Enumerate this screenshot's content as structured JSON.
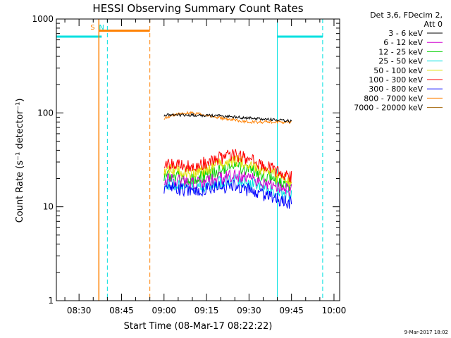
{
  "chart_data": {
    "type": "line",
    "title": "HESSI Observing Summary Count Rates",
    "xlabel": "Start Time (08-Mar-17 08:22:22)",
    "ylabel": "Count Rate (s⁻¹ detector⁻¹)",
    "y_scale": "log",
    "ylim": [
      1,
      1000
    ],
    "xlim": [
      "08:22",
      "10:02"
    ],
    "x_ticks": [
      "08:30",
      "08:45",
      "09:00",
      "09:15",
      "09:30",
      "09:45",
      "10:00"
    ],
    "y_ticks": [
      "1",
      "10",
      "100",
      "1000"
    ],
    "grid": false,
    "legend_header": [
      "Det 3,6, FDecim 2,",
      "Att 0"
    ],
    "legend_position": "right",
    "timestamp": "9-Mar-2017 18:02",
    "series": [
      {
        "name": "3 - 6 keV",
        "color": "#000000",
        "x": [
          "09:00",
          "09:10",
          "09:20",
          "09:30",
          "09:40",
          "09:45"
        ],
        "values": [
          95,
          95,
          93,
          88,
          84,
          82
        ]
      },
      {
        "name": "6 - 12 keV",
        "color": "#d000d0",
        "x": [
          "09:00",
          "09:10",
          "09:20",
          "09:25",
          "09:30",
          "09:40",
          "09:45"
        ],
        "values": [
          20,
          18,
          20,
          22,
          20,
          16,
          15
        ]
      },
      {
        "name": "12 - 25 keV",
        "color": "#00d000",
        "x": [
          "09:00",
          "09:10",
          "09:20",
          "09:25",
          "09:30",
          "09:40",
          "09:45"
        ],
        "values": [
          22,
          20,
          24,
          27,
          25,
          19,
          17
        ]
      },
      {
        "name": "25 - 50 keV",
        "color": "#00e0e0",
        "x": [
          "09:00",
          "09:10",
          "09:20",
          "09:25",
          "09:30",
          "09:40",
          "09:45"
        ],
        "values": [
          18,
          16,
          18,
          20,
          18,
          14,
          13
        ]
      },
      {
        "name": "50 - 100 keV",
        "color": "#e0e000",
        "x": [
          "09:00",
          "09:10",
          "09:20",
          "09:25",
          "09:30",
          "09:40",
          "09:45"
        ],
        "values": [
          25,
          23,
          28,
          32,
          28,
          21,
          19
        ]
      },
      {
        "name": "100 - 300 keV",
        "color": "#ff0000",
        "x": [
          "09:00",
          "09:10",
          "09:20",
          "09:25",
          "09:30",
          "09:40",
          "09:45"
        ],
        "values": [
          30,
          27,
          33,
          36,
          32,
          24,
          21
        ]
      },
      {
        "name": "300 - 800 keV",
        "color": "#0000ff",
        "x": [
          "09:00",
          "09:10",
          "09:20",
          "09:25",
          "09:30",
          "09:40",
          "09:45"
        ],
        "values": [
          16,
          15,
          16,
          17,
          15,
          12,
          11
        ]
      },
      {
        "name": "800 - 7000 keV",
        "color": "#ff8000",
        "x": [
          "09:00",
          "09:05",
          "09:10",
          "09:20",
          "09:30",
          "09:40",
          "09:45"
        ],
        "values": [
          88,
          98,
          100,
          88,
          80,
          80,
          80
        ]
      },
      {
        "name": "7000 - 20000 keV",
        "color": "#a06000",
        "x": [],
        "values": []
      }
    ],
    "annotations": [
      {
        "text": "S",
        "color": "#ff8000",
        "x": "08:37"
      },
      {
        "text": "N",
        "color": "#00e0e0",
        "x": "08:40"
      }
    ],
    "segments": {
      "cyan_bars": [
        {
          "x": [
            "08:22",
            "08:38"
          ],
          "value": 650
        },
        {
          "x": [
            "09:40",
            "09:56"
          ],
          "value": 650
        }
      ],
      "orange_bars": [
        {
          "x": [
            "08:37",
            "08:55"
          ],
          "value": 750
        }
      ],
      "cyan_solid_lines": [
        "08:22",
        "09:40"
      ],
      "cyan_dashed_lines": [
        "08:40",
        "09:56"
      ],
      "orange_solid_lines": [
        "08:37"
      ],
      "orange_dashed_lines": [
        "08:55"
      ]
    }
  }
}
